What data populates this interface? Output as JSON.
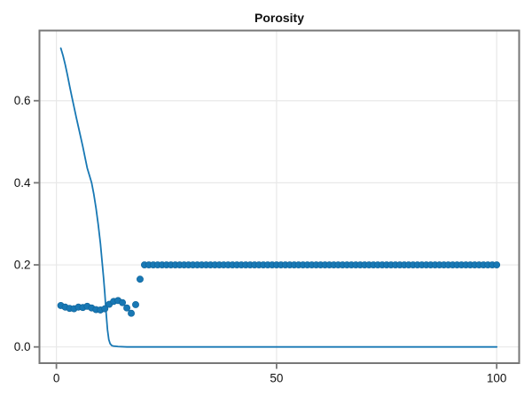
{
  "figure": {
    "background": "#ffffff"
  },
  "chart_data": {
    "type": "line+scatter",
    "title": "Porosity",
    "xlabel": "",
    "ylabel": "",
    "xlim": [
      -3.85,
      105.1
    ],
    "ylim": [
      -0.0395,
      0.771
    ],
    "grid": true,
    "legend": "none",
    "xticks": {
      "values": [
        0,
        50,
        100
      ],
      "labels": [
        "0",
        "50",
        "100"
      ]
    },
    "yticks": {
      "values": [
        0.0,
        0.2,
        0.4,
        0.6
      ],
      "labels": [
        "0.0",
        "0.2",
        "0.4",
        "0.6"
      ]
    },
    "colors": {
      "series_blue": "#1878b4",
      "marker_edge_blue": "#10659c",
      "frame_gray": "#777777",
      "grid_gray": "#e8e8e8",
      "text_black": "#111111"
    },
    "series": [
      {
        "name": "porosity-profile-line",
        "type": "line",
        "color": "#1878b4",
        "stroke_width": 1.8,
        "x": [
          1,
          1.5,
          2,
          2.5,
          3,
          3.5,
          4,
          4.5,
          5,
          5.5,
          6,
          6.5,
          7,
          7.5,
          8,
          8.5,
          9,
          9.5,
          10,
          10.4,
          10.7,
          11,
          11.3,
          11.6,
          11.9,
          12.2,
          12.6,
          13,
          14,
          16,
          100
        ],
        "y": [
          0.728,
          0.71,
          0.688,
          0.663,
          0.636,
          0.61,
          0.585,
          0.56,
          0.536,
          0.512,
          0.488,
          0.462,
          0.436,
          0.418,
          0.4,
          0.372,
          0.338,
          0.298,
          0.252,
          0.205,
          0.17,
          0.13,
          0.082,
          0.042,
          0.018,
          0.008,
          0.003,
          0.002,
          0.001,
          0.0,
          0.0
        ]
      },
      {
        "name": "porosity-cells-scatter",
        "type": "scatter",
        "color": "#1878b4",
        "marker_radius": 3.6,
        "x": [
          1,
          2,
          3,
          4,
          5,
          6,
          7,
          8,
          9,
          10,
          11,
          12,
          13,
          14,
          15,
          16,
          17,
          18,
          19,
          20,
          21,
          22,
          23,
          24,
          25,
          26,
          27,
          28,
          29,
          30,
          31,
          32,
          33,
          34,
          35,
          36,
          37,
          38,
          39,
          40,
          41,
          42,
          43,
          44,
          45,
          46,
          47,
          48,
          49,
          50,
          51,
          52,
          53,
          54,
          55,
          56,
          57,
          58,
          59,
          60,
          61,
          62,
          63,
          64,
          65,
          66,
          67,
          68,
          69,
          70,
          71,
          72,
          73,
          74,
          75,
          76,
          77,
          78,
          79,
          80,
          81,
          82,
          83,
          84,
          85,
          86,
          87,
          88,
          89,
          90,
          91,
          92,
          93,
          94,
          95,
          96,
          97,
          98,
          99,
          100
        ],
        "y": [
          0.101,
          0.097,
          0.094,
          0.093,
          0.097,
          0.096,
          0.099,
          0.095,
          0.091,
          0.09,
          0.093,
          0.104,
          0.111,
          0.113,
          0.108,
          0.095,
          0.082,
          0.103,
          0.165,
          0.2,
          0.2,
          0.2,
          0.2,
          0.2,
          0.2,
          0.2,
          0.2,
          0.2,
          0.2,
          0.2,
          0.2,
          0.2,
          0.2,
          0.2,
          0.2,
          0.2,
          0.2,
          0.2,
          0.2,
          0.2,
          0.2,
          0.2,
          0.2,
          0.2,
          0.2,
          0.2,
          0.2,
          0.2,
          0.2,
          0.2,
          0.2,
          0.2,
          0.2,
          0.2,
          0.2,
          0.2,
          0.2,
          0.2,
          0.2,
          0.2,
          0.2,
          0.2,
          0.2,
          0.2,
          0.2,
          0.2,
          0.2,
          0.2,
          0.2,
          0.2,
          0.2,
          0.2,
          0.2,
          0.2,
          0.2,
          0.2,
          0.2,
          0.2,
          0.2,
          0.2,
          0.2,
          0.2,
          0.2,
          0.2,
          0.2,
          0.2,
          0.2,
          0.2,
          0.2,
          0.2,
          0.2,
          0.2,
          0.2,
          0.2,
          0.2,
          0.2,
          0.2,
          0.2,
          0.2,
          0.2
        ]
      }
    ]
  }
}
